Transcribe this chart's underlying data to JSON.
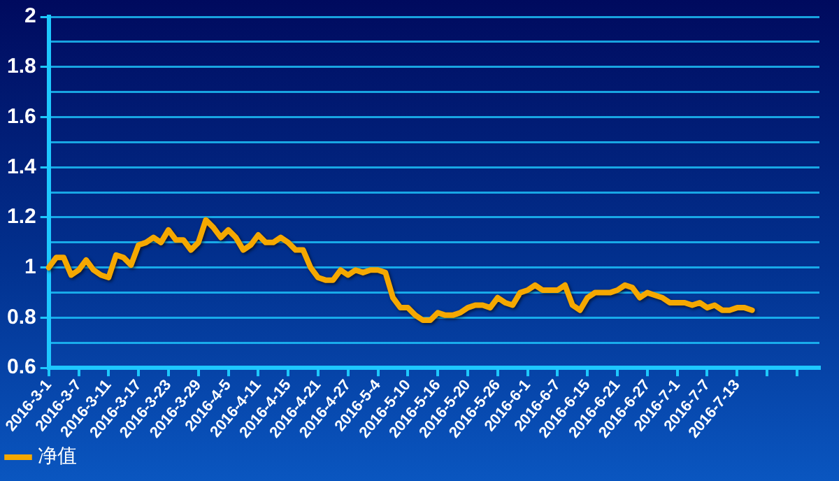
{
  "chart_data": {
    "type": "line",
    "categories": [
      "2016-3-1",
      null,
      null,
      null,
      "2016-3-7",
      null,
      null,
      null,
      "2016-3-11",
      null,
      null,
      null,
      "2016-3-17",
      null,
      null,
      null,
      "2016-3-23",
      null,
      null,
      null,
      "2016-3-29",
      null,
      null,
      null,
      "2016-4-5",
      null,
      null,
      null,
      "2016-4-11",
      null,
      null,
      null,
      "2016-4-15",
      null,
      null,
      null,
      "2016-4-21",
      null,
      null,
      null,
      "2016-4-27",
      null,
      null,
      null,
      "2016-5-4",
      null,
      null,
      null,
      "2016-5-10",
      null,
      null,
      null,
      "2016-5-16",
      null,
      null,
      null,
      "2016-5-20",
      null,
      null,
      null,
      "2016-5-26",
      null,
      null,
      null,
      "2016-6-1",
      null,
      null,
      null,
      "2016-6-7",
      null,
      null,
      null,
      "2016-6-15",
      null,
      null,
      null,
      "2016-6-21",
      null,
      null,
      null,
      "2016-6-27",
      null,
      null,
      null,
      "2016-7-1",
      null,
      null,
      null,
      "2016-7-7",
      null,
      null,
      null,
      "2016-7-13",
      null,
      null,
      null,
      null,
      null,
      null,
      null,
      null,
      null,
      null,
      null
    ],
    "series": [
      {
        "name": "净值",
        "color": "#f5a800",
        "values": [
          1.0,
          1.04,
          1.04,
          0.97,
          0.99,
          1.03,
          0.99,
          0.97,
          0.96,
          1.05,
          1.04,
          1.01,
          1.09,
          1.1,
          1.12,
          1.1,
          1.15,
          1.11,
          1.11,
          1.07,
          1.1,
          1.19,
          1.16,
          1.12,
          1.15,
          1.12,
          1.07,
          1.09,
          1.13,
          1.1,
          1.1,
          1.12,
          1.1,
          1.07,
          1.07,
          1.0,
          0.96,
          0.95,
          0.95,
          0.99,
          0.97,
          0.99,
          0.98,
          0.99,
          0.99,
          0.98,
          0.88,
          0.84,
          0.84,
          0.81,
          0.79,
          0.79,
          0.82,
          0.81,
          0.81,
          0.82,
          0.84,
          0.85,
          0.85,
          0.84,
          0.88,
          0.86,
          0.85,
          0.9,
          0.91,
          0.93,
          0.91,
          0.91,
          0.91,
          0.93,
          0.85,
          0.83,
          0.88,
          0.9,
          0.9,
          0.9,
          0.91,
          0.93,
          0.92,
          0.88,
          0.9,
          0.89,
          0.88,
          0.86,
          0.86,
          0.86,
          0.85,
          0.86,
          0.84,
          0.85,
          0.83,
          0.83,
          0.84,
          0.84,
          0.83,
          null,
          null,
          null,
          null,
          null,
          null,
          null,
          null,
          null
        ]
      }
    ],
    "ylim": [
      0.6,
      2
    ],
    "yticks": [
      0.6,
      {
        "value": 0.7,
        "label": null
      },
      0.8,
      {
        "value": 0.9,
        "label": null
      },
      1,
      {
        "value": 1.1,
        "label": null
      },
      1.2,
      {
        "value": 1.3,
        "label": null
      },
      1.4,
      {
        "value": 1.5,
        "label": null
      },
      1.6,
      {
        "value": 1.7,
        "label": null
      },
      1.8,
      {
        "value": 1.9,
        "label": null
      },
      2
    ],
    "grid": "y",
    "legend": "bottom left",
    "marker": "none",
    "line_style": "solid"
  }
}
